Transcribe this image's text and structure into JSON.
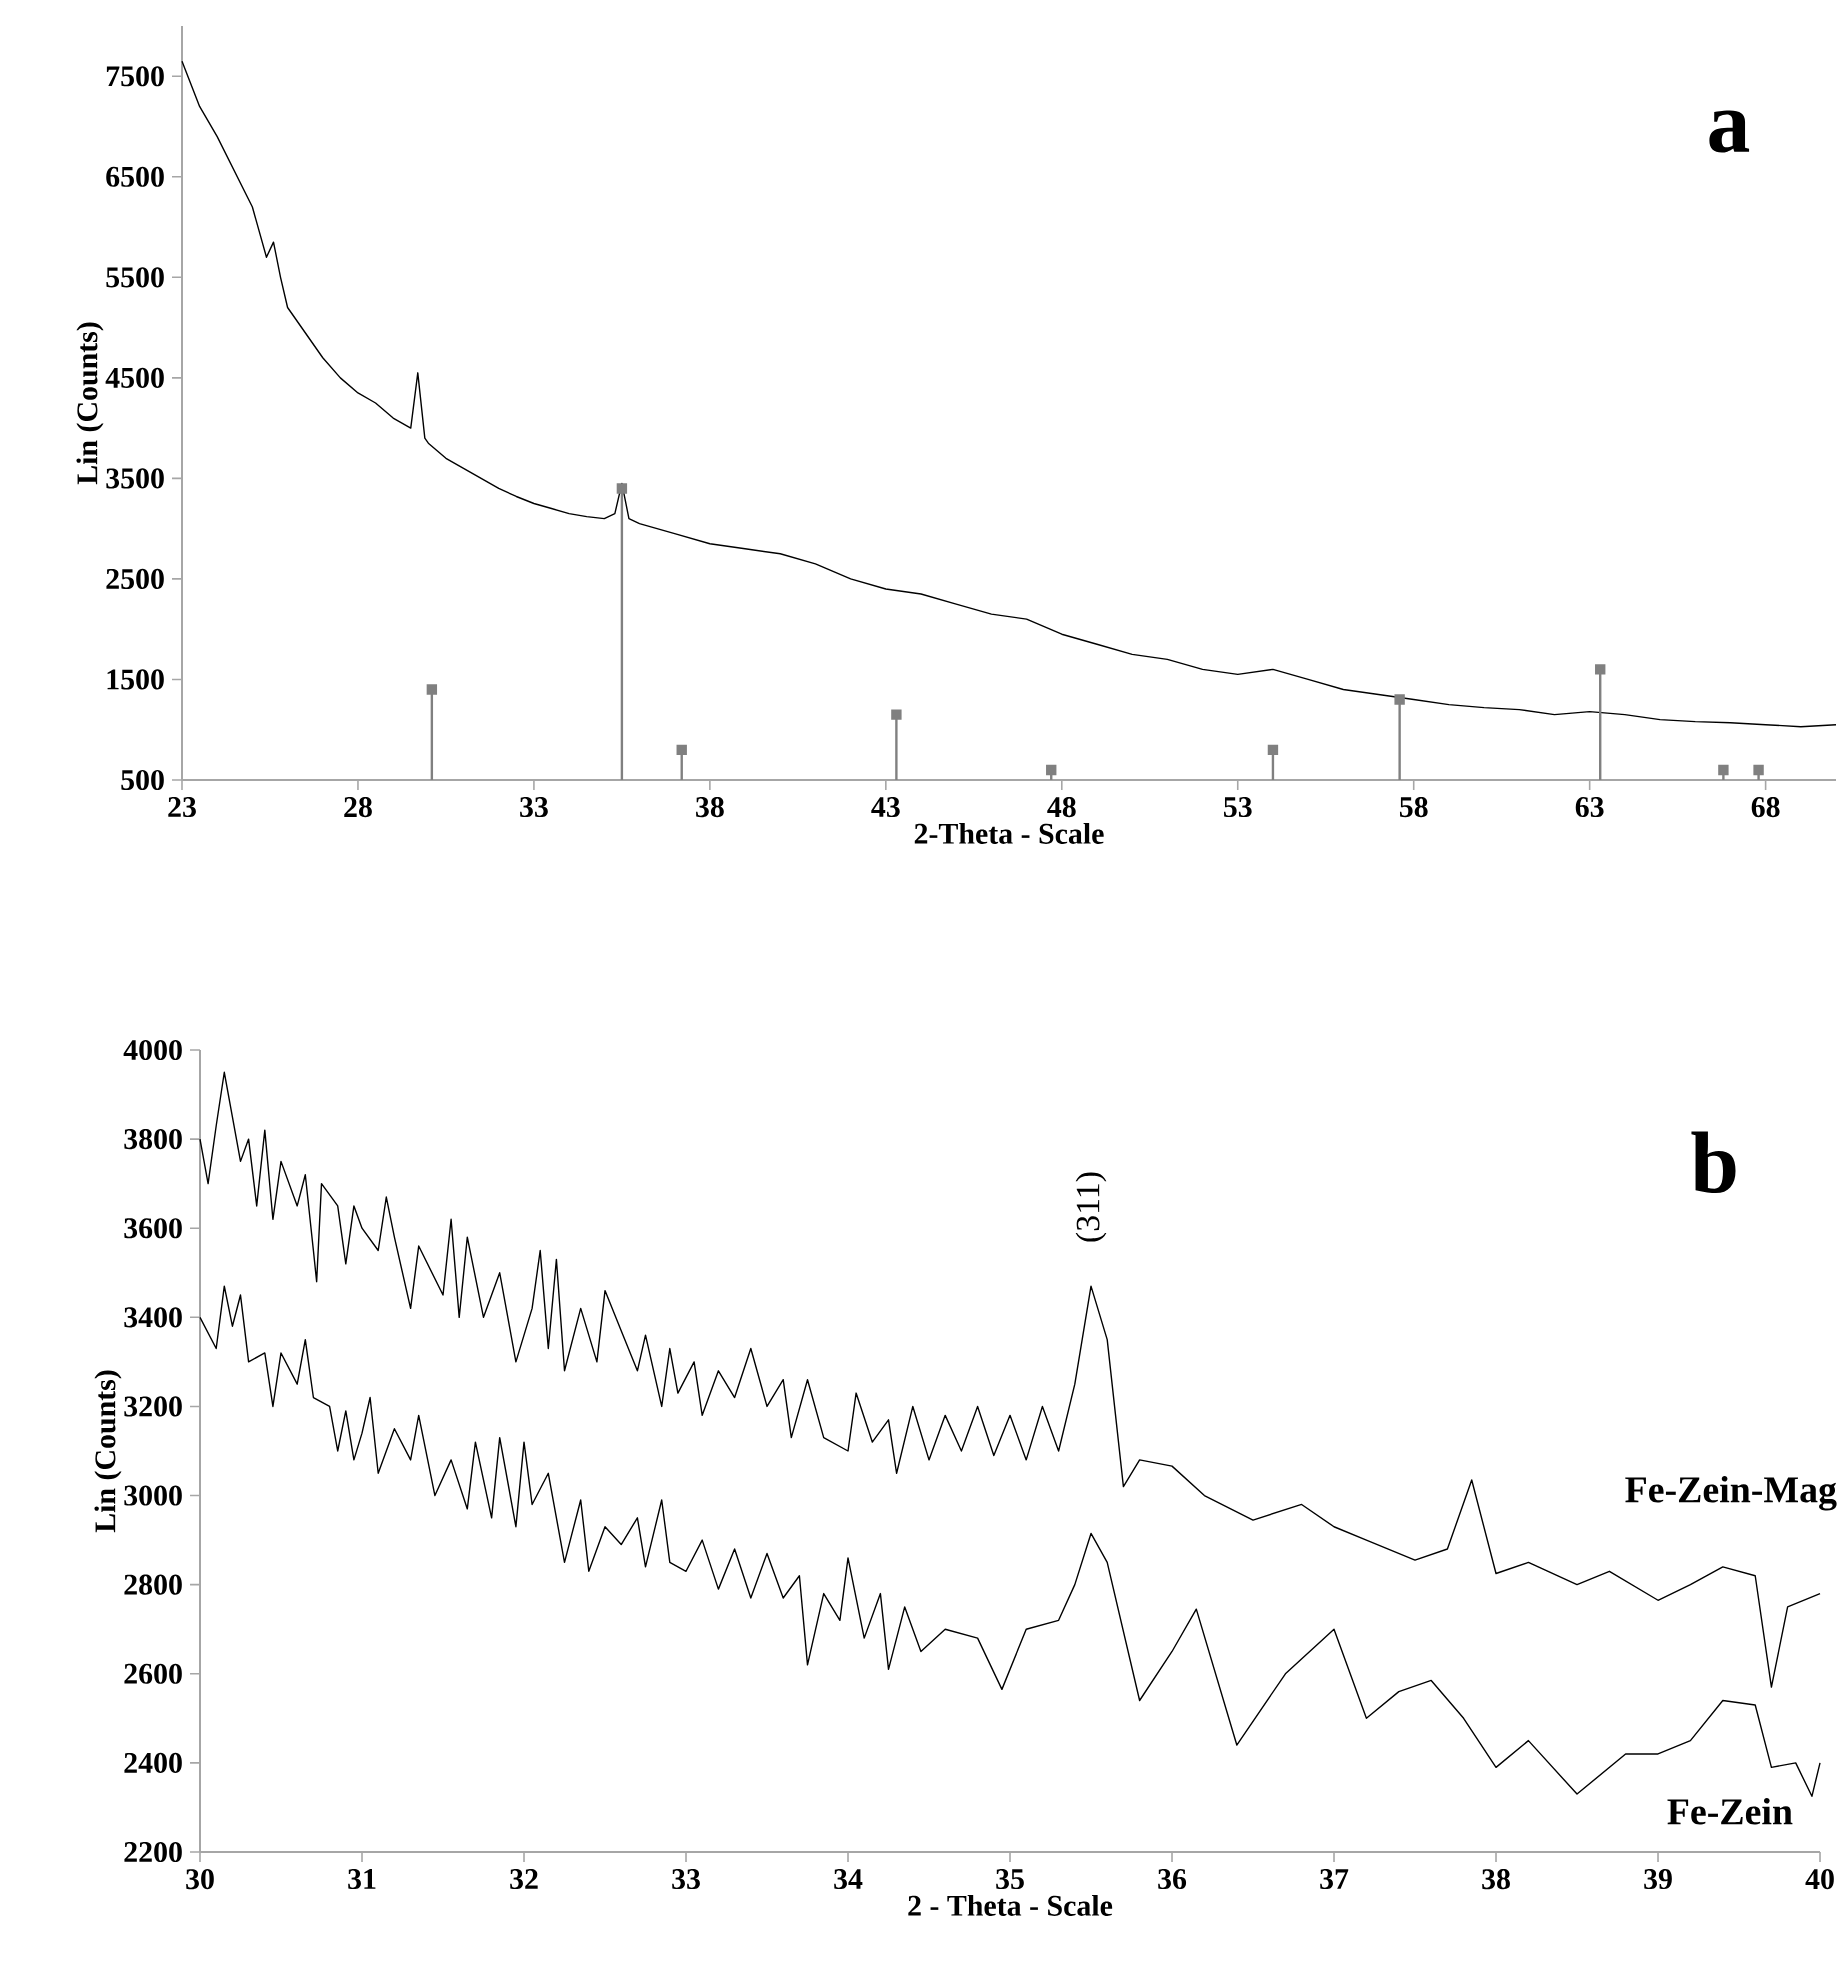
{
  "chart_data": [
    {
      "type": "line",
      "title": "a",
      "xlabel": "2-Theta - Scale",
      "ylabel": "Lin (Counts)",
      "xlim": [
        23,
        70
      ],
      "ylim": [
        500,
        8000
      ],
      "xticks": [
        23,
        28,
        33,
        38,
        43,
        48,
        53,
        58,
        63,
        68
      ],
      "yticks": [
        500,
        1500,
        2500,
        3500,
        4500,
        5500,
        6500,
        7500
      ],
      "series": [
        {
          "color": "#000000",
          "x": [
            23,
            23.5,
            24,
            24.5,
            25,
            25.4,
            25.6,
            25.8,
            26,
            26.5,
            27,
            27.5,
            28,
            28.5,
            29,
            29.5,
            29.7,
            29.9,
            30,
            30.5,
            31,
            31.5,
            32,
            32.5,
            33,
            33.5,
            34,
            34.5,
            35,
            35.3,
            35.5,
            35.7,
            36,
            37,
            38,
            39,
            40,
            41,
            42,
            43,
            44,
            45,
            46,
            47,
            48,
            49,
            50,
            51,
            52,
            53,
            54,
            55,
            56,
            57,
            58,
            59,
            60,
            61,
            62,
            63,
            64,
            65,
            66,
            67,
            68,
            69,
            70
          ],
          "values": [
            7650,
            7200,
            6900,
            6550,
            6200,
            5700,
            5850,
            5500,
            5200,
            4950,
            4700,
            4500,
            4350,
            4250,
            4100,
            4000,
            4550,
            3900,
            3850,
            3700,
            3600,
            3500,
            3400,
            3320,
            3250,
            3200,
            3150,
            3120,
            3100,
            3150,
            3450,
            3100,
            3050,
            2950,
            2850,
            2800,
            2750,
            2650,
            2500,
            2400,
            2350,
            2250,
            2150,
            2100,
            1950,
            1850,
            1750,
            1700,
            1600,
            1550,
            1600,
            1500,
            1400,
            1350,
            1300,
            1250,
            1220,
            1200,
            1150,
            1180,
            1150,
            1100,
            1080,
            1070,
            1050,
            1030,
            1050
          ]
        },
        {
          "type": "lollipop",
          "color": "#808080",
          "marker": "square",
          "x": [
            30.1,
            35.5,
            37.2,
            43.3,
            47.7,
            54.0,
            57.6,
            63.3,
            66.8,
            67.8
          ],
          "values": [
            1400,
            3400,
            800,
            1150,
            600,
            800,
            1300,
            1600,
            600,
            600
          ]
        }
      ]
    },
    {
      "type": "line",
      "title": "b",
      "xlabel": "2 - Theta - Scale",
      "ylabel": "Lin (Counts)",
      "xlim": [
        30,
        40
      ],
      "ylim": [
        2200,
        4000
      ],
      "xticks": [
        30,
        31,
        32,
        33,
        34,
        35,
        36,
        37,
        38,
        39,
        40
      ],
      "yticks": [
        2200,
        2400,
        2600,
        2800,
        3000,
        3200,
        3400,
        3600,
        3800,
        4000
      ],
      "annotations": [
        {
          "text": "(311)",
          "x": 35.5,
          "y": 3470
        }
      ],
      "series": [
        {
          "name": "Fe-Zein-Mag",
          "color": "#000000",
          "x": [
            30.0,
            30.05,
            30.1,
            30.15,
            30.2,
            30.25,
            30.3,
            30.35,
            30.4,
            30.45,
            30.5,
            30.6,
            30.65,
            30.7,
            30.72,
            30.75,
            30.85,
            30.9,
            30.95,
            31.0,
            31.1,
            31.15,
            31.2,
            31.3,
            31.35,
            31.5,
            31.55,
            31.6,
            31.65,
            31.75,
            31.85,
            31.95,
            32.05,
            32.1,
            32.15,
            32.2,
            32.25,
            32.35,
            32.45,
            32.5,
            32.6,
            32.7,
            32.75,
            32.85,
            32.9,
            32.95,
            33.05,
            33.1,
            33.2,
            33.3,
            33.4,
            33.5,
            33.6,
            33.65,
            33.75,
            33.85,
            34.0,
            34.05,
            34.15,
            34.25,
            34.3,
            34.4,
            34.5,
            34.6,
            34.7,
            34.8,
            34.9,
            35.0,
            35.1,
            35.2,
            35.3,
            35.4,
            35.5,
            35.6,
            35.7,
            35.8,
            36.0,
            36.2,
            36.5,
            36.8,
            37.0,
            37.2,
            37.5,
            37.7,
            37.85,
            38.0,
            38.2,
            38.5,
            38.7,
            39.0,
            39.2,
            39.4,
            39.6,
            39.7,
            39.8,
            40.0
          ],
          "values": [
            3800,
            3700,
            3830,
            3950,
            3850,
            3750,
            3800,
            3650,
            3820,
            3620,
            3750,
            3650,
            3720,
            3550,
            3480,
            3700,
            3650,
            3520,
            3650,
            3600,
            3550,
            3670,
            3580,
            3420,
            3560,
            3450,
            3620,
            3400,
            3580,
            3400,
            3500,
            3300,
            3420,
            3550,
            3330,
            3530,
            3280,
            3420,
            3300,
            3460,
            3370,
            3280,
            3360,
            3200,
            3330,
            3230,
            3300,
            3180,
            3280,
            3220,
            3330,
            3200,
            3260,
            3130,
            3260,
            3130,
            3100,
            3230,
            3120,
            3170,
            3050,
            3200,
            3080,
            3180,
            3100,
            3200,
            3090,
            3180,
            3080,
            3200,
            3100,
            3250,
            3470,
            3350,
            3020,
            3080,
            3066,
            3000,
            2945,
            2980,
            2930,
            2900,
            2855,
            2880,
            3035,
            2825,
            2850,
            2800,
            2830,
            2765,
            2800,
            2840,
            2820,
            2570,
            2750,
            2780
          ]
        },
        {
          "name": "Fe-Zein",
          "color": "#000000",
          "x": [
            30.0,
            30.1,
            30.15,
            30.2,
            30.25,
            30.3,
            30.4,
            30.45,
            30.5,
            30.6,
            30.65,
            30.7,
            30.8,
            30.85,
            30.9,
            30.95,
            31.0,
            31.05,
            31.1,
            31.2,
            31.3,
            31.35,
            31.45,
            31.55,
            31.65,
            31.7,
            31.8,
            31.85,
            31.95,
            32.0,
            32.05,
            32.15,
            32.25,
            32.35,
            32.4,
            32.5,
            32.6,
            32.7,
            32.75,
            32.85,
            32.9,
            33.0,
            33.1,
            33.2,
            33.3,
            33.4,
            33.5,
            33.6,
            33.7,
            33.75,
            33.85,
            33.95,
            34.0,
            34.1,
            34.2,
            34.25,
            34.35,
            34.45,
            34.6,
            34.8,
            34.95,
            35.1,
            35.3,
            35.4,
            35.5,
            35.6,
            35.8,
            36.0,
            36.15,
            36.4,
            36.7,
            37.0,
            37.2,
            37.4,
            37.6,
            37.8,
            38.0,
            38.2,
            38.5,
            38.8,
            39.0,
            39.2,
            39.4,
            39.6,
            39.7,
            39.85,
            39.95,
            40.0
          ],
          "values": [
            3400,
            3330,
            3470,
            3380,
            3450,
            3300,
            3320,
            3200,
            3320,
            3250,
            3350,
            3220,
            3200,
            3100,
            3190,
            3080,
            3140,
            3220,
            3050,
            3150,
            3080,
            3180,
            3000,
            3080,
            2970,
            3120,
            2950,
            3130,
            2930,
            3120,
            2980,
            3050,
            2850,
            2990,
            2830,
            2930,
            2890,
            2950,
            2840,
            2990,
            2850,
            2830,
            2900,
            2790,
            2880,
            2770,
            2870,
            2770,
            2820,
            2620,
            2780,
            2720,
            2860,
            2680,
            2780,
            2610,
            2750,
            2650,
            2700,
            2680,
            2565,
            2700,
            2720,
            2800,
            2915,
            2850,
            2540,
            2650,
            2745,
            2440,
            2600,
            2700,
            2500,
            2560,
            2585,
            2500,
            2390,
            2450,
            2330,
            2420,
            2420,
            2450,
            2540,
            2530,
            2390,
            2400,
            2325,
            2400
          ]
        }
      ]
    }
  ]
}
